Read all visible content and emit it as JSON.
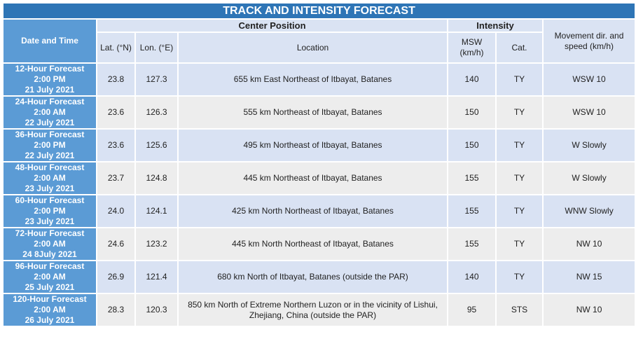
{
  "title": "TRACK AND INTENSITY FORECAST",
  "header": {
    "date_time": "Date and Time",
    "center_position": "Center Position",
    "intensity": "Intensity",
    "movement": "Movement dir. and speed (km/h)",
    "lat": "Lat. (°N)",
    "lon": "Lon. (°E)",
    "location": "Location",
    "msw": "MSW (km/h)",
    "cat": "Cat."
  },
  "rows": [
    {
      "time": [
        "12-Hour Forecast",
        "2:00 PM",
        "21 July 2021"
      ],
      "lat": "23.8",
      "lon": "127.3",
      "location": "655 km East Northeast of Itbayat, Batanes",
      "msw": "140",
      "cat": "TY",
      "movement": "WSW 10"
    },
    {
      "time": [
        "24-Hour Forecast",
        "2:00 AM",
        "22 July 2021"
      ],
      "lat": "23.6",
      "lon": "126.3",
      "location": "555 km Northeast of Itbayat, Batanes",
      "msw": "150",
      "cat": "TY",
      "movement": "WSW 10"
    },
    {
      "time": [
        "36-Hour Forecast",
        "2:00 PM",
        "22 July 2021"
      ],
      "lat": "23.6",
      "lon": "125.6",
      "location": "495 km Northeast of Itbayat, Batanes",
      "msw": "150",
      "cat": "TY",
      "movement": "W Slowly"
    },
    {
      "time": [
        "48-Hour Forecast",
        "2:00 AM",
        "23 July 2021"
      ],
      "lat": "23.7",
      "lon": "124.8",
      "location": "445 km Northeast of Itbayat, Batanes",
      "msw": "155",
      "cat": "TY",
      "movement": "W Slowly"
    },
    {
      "time": [
        "60-Hour Forecast",
        "2:00 PM",
        "23 July 2021"
      ],
      "lat": "24.0",
      "lon": "124.1",
      "location": "425 km North Northeast of Itbayat, Batanes",
      "msw": "155",
      "cat": "TY",
      "movement": "WNW Slowly"
    },
    {
      "time": [
        "72-Hour Forecast",
        "2:00 AM",
        "24 8July 2021"
      ],
      "lat": "24.6",
      "lon": "123.2",
      "location": "445 km North Northeast of Itbayat, Batanes",
      "msw": "155",
      "cat": "TY",
      "movement": "NW 10"
    },
    {
      "time": [
        "96-Hour Forecast",
        "2:00 AM",
        "25 July 2021"
      ],
      "lat": "26.9",
      "lon": "121.4",
      "location": "680 km North of Itbayat, Batanes (outside the PAR)",
      "msw": "140",
      "cat": "TY",
      "movement": "NW 15"
    },
    {
      "time": [
        "120-Hour Forecast",
        "2:00 AM",
        "26 July 2021"
      ],
      "lat": "28.3",
      "lon": "120.3",
      "location": "850 km North of Extreme Northern Luzon or in the vicinity of Lishui, Zhejiang, China (outside the PAR)",
      "msw": "95",
      "cat": "STS",
      "movement": "NW 10"
    }
  ]
}
